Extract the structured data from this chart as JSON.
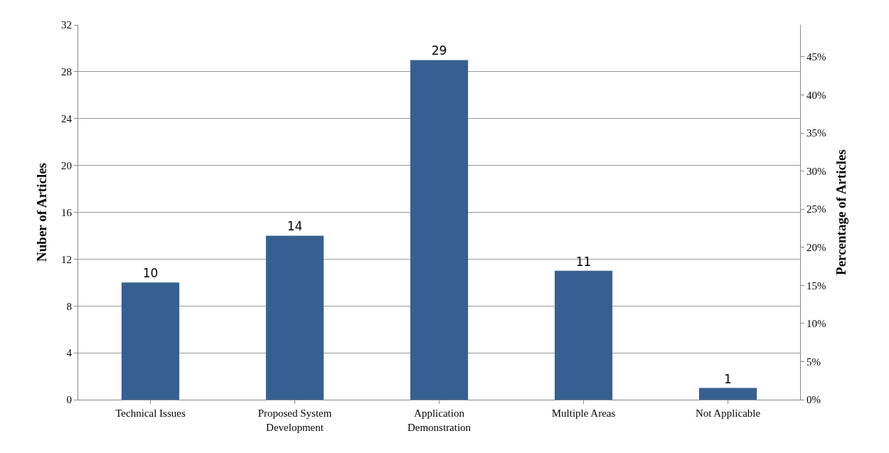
{
  "chart_data": {
    "type": "bar",
    "ylabel": "Nuber of Articles",
    "y2label": "Percentage of Articles",
    "categories": [
      "Technical Issues",
      "Proposed System Development",
      "Application Demonstration",
      "Multiple Areas",
      "Not Applicable"
    ],
    "values": [
      10,
      14,
      29,
      11,
      1
    ],
    "colors": [
      "#376092",
      "#376092",
      "#376092",
      "#376092",
      "#376092"
    ],
    "data_labels": true,
    "ylim": [
      0,
      32
    ],
    "yticks": [
      0,
      4,
      8,
      12,
      16,
      20,
      24,
      28,
      32
    ],
    "y2lim": [
      0,
      49.2
    ],
    "y2ticks": [
      {
        "value": 0,
        "label": "0%"
      },
      {
        "value": 5,
        "label": "5%"
      },
      {
        "value": 10,
        "label": "10%"
      },
      {
        "value": 15,
        "label": "15%"
      },
      {
        "value": 20,
        "label": "20%"
      },
      {
        "value": 25,
        "label": "25%"
      },
      {
        "value": 30,
        "label": "30%"
      },
      {
        "value": 35,
        "label": "35%"
      },
      {
        "value": 40,
        "label": "40%"
      },
      {
        "value": 45,
        "label": "45%"
      }
    ],
    "grid": "y"
  }
}
